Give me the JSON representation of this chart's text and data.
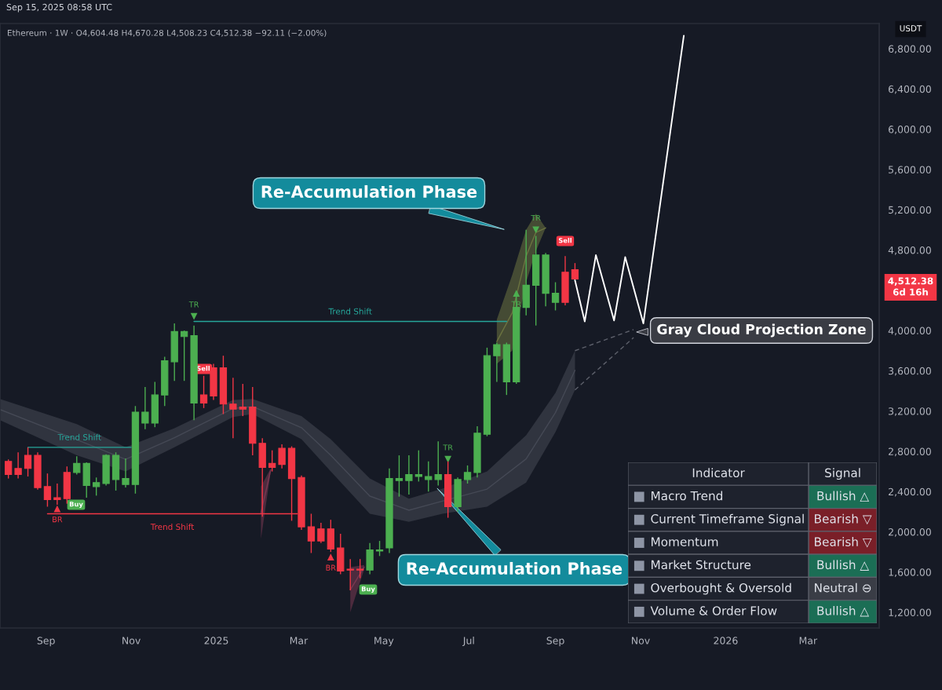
{
  "chart_data": [
    {
      "type": "candlestick",
      "title": "Ethereum · 1W · O4,604.48 H4,670.28 L4,508.23 C4,512.38 −92.11 (−2.00%)",
      "ylabel": "USDT",
      "x": [
        "2024-08-05",
        "2024-08-12",
        "2024-08-19",
        "2024-08-26",
        "2024-09-02",
        "2024-09-09",
        "2024-09-16",
        "2024-09-23",
        "2024-09-30",
        "2024-10-07",
        "2024-10-14",
        "2024-10-21",
        "2024-10-28",
        "2024-11-04",
        "2024-11-11",
        "2024-11-18",
        "2024-11-25",
        "2024-12-02",
        "2024-12-09",
        "2024-12-16",
        "2024-12-23",
        "2024-12-30",
        "2025-01-06",
        "2025-01-13",
        "2025-01-20",
        "2025-01-27",
        "2025-02-03",
        "2025-02-10",
        "2025-02-17",
        "2025-02-24",
        "2025-03-03",
        "2025-03-10",
        "2025-03-17",
        "2025-03-24",
        "2025-03-31",
        "2025-04-07",
        "2025-04-14",
        "2025-04-21",
        "2025-04-28",
        "2025-05-05",
        "2025-05-12",
        "2025-05-19",
        "2025-05-26",
        "2025-06-02",
        "2025-06-09",
        "2025-06-16",
        "2025-06-23",
        "2025-06-30",
        "2025-07-07",
        "2025-07-14",
        "2025-07-21",
        "2025-07-28",
        "2025-08-04",
        "2025-08-11",
        "2025-08-18",
        "2025-08-25",
        "2025-09-01",
        "2025-09-08",
        "2025-09-15"
      ],
      "ohlc": [
        [
          2700,
          2720,
          2530,
          2570
        ],
        [
          2630,
          2790,
          2530,
          2570
        ],
        [
          2760,
          2840,
          2550,
          2630
        ],
        [
          2760,
          2790,
          2420,
          2440
        ],
        [
          2450,
          2580,
          2250,
          2320
        ],
        [
          2340,
          2480,
          2270,
          2320
        ],
        [
          2590,
          2650,
          2280,
          2330
        ],
        [
          2590,
          2750,
          2570,
          2680
        ],
        [
          2460,
          2690,
          2340,
          2680
        ],
        [
          2450,
          2540,
          2360,
          2490
        ],
        [
          2480,
          2770,
          2460,
          2760
        ],
        [
          2520,
          2790,
          2410,
          2760
        ],
        [
          2470,
          2730,
          2440,
          2530
        ],
        [
          2470,
          3250,
          2380,
          3190
        ],
        [
          3080,
          3440,
          3020,
          3190
        ],
        [
          3080,
          3490,
          3040,
          3360
        ],
        [
          3360,
          3740,
          3250,
          3700
        ],
        [
          3690,
          4070,
          3500,
          3990
        ],
        [
          3940,
          4000,
          3500,
          3990
        ],
        [
          3280,
          4050,
          3110,
          3950
        ],
        [
          3360,
          3550,
          3230,
          3280
        ],
        [
          3630,
          3670,
          3310,
          3350
        ],
        [
          3630,
          3750,
          3170,
          3270
        ],
        [
          3270,
          3530,
          2930,
          3220
        ],
        [
          3240,
          3470,
          3150,
          3220
        ],
        [
          3240,
          3440,
          2760,
          2880
        ],
        [
          2880,
          2930,
          2150,
          2640
        ],
        [
          2680,
          2810,
          2600,
          2640
        ],
        [
          2830,
          2870,
          2630,
          2670
        ],
        [
          2830,
          2850,
          2110,
          2530
        ],
        [
          2540,
          2560,
          2020,
          2050
        ],
        [
          2050,
          2180,
          1790,
          1910
        ],
        [
          2030,
          2090,
          1890,
          1910
        ],
        [
          2030,
          2120,
          1800,
          1830
        ],
        [
          1840,
          1980,
          1580,
          1610
        ],
        [
          1630,
          1730,
          1420,
          1620
        ],
        [
          1630,
          1730,
          1540,
          1620
        ],
        [
          1620,
          1890,
          1580,
          1820
        ],
        [
          1810,
          1910,
          1760,
          1820
        ],
        [
          1840,
          2630,
          1790,
          2530
        ],
        [
          2510,
          2760,
          2350,
          2530
        ],
        [
          2510,
          2760,
          2370,
          2570
        ],
        [
          2550,
          2810,
          2500,
          2570
        ],
        [
          2520,
          2700,
          2400,
          2550
        ],
        [
          2520,
          2900,
          2460,
          2570
        ],
        [
          2570,
          2700,
          2140,
          2250
        ],
        [
          2250,
          2540,
          2200,
          2520
        ],
        [
          2520,
          2660,
          2480,
          2590
        ],
        [
          2590,
          3050,
          2540,
          2980
        ],
        [
          2970,
          3830,
          2950,
          3750
        ],
        [
          3750,
          3880,
          3490,
          3860
        ],
        [
          3490,
          3880,
          3360,
          3860
        ],
        [
          3490,
          4390,
          3470,
          4230
        ],
        [
          4230,
          5000,
          4150,
          4450
        ],
        [
          4450,
          4940,
          4050,
          4750
        ],
        [
          4370,
          4770,
          4240,
          4750
        ],
        [
          4280,
          4480,
          4200,
          4370
        ],
        [
          4580,
          4740,
          4250,
          4280
        ],
        [
          4604.48,
          4670.28,
          4508.23,
          4512.38
        ]
      ],
      "series": [
        {
          "type": "line",
          "color": "#454955",
          "x": [
            "2024-07-30",
            "2024-09-23",
            "2024-10-28",
            "2024-12-02",
            "2025-01-13",
            "2025-01-27",
            "2025-03-03",
            "2025-03-24",
            "2025-04-21",
            "2025-05-19",
            "2025-06-12",
            "2025-07-14",
            "2025-08-11",
            "2025-09-01",
            "2025-09-15"
          ],
          "values": [
            3215,
            2915,
            2720,
            2935,
            3225,
            3245,
            3035,
            2760,
            2355,
            2215,
            2305,
            2425,
            2725,
            3185,
            3605
          ],
          "upper": [
            3320,
            3070,
            2840,
            3030,
            3310,
            3320,
            3150,
            2920,
            2530,
            2330,
            2430,
            2600,
            2960,
            3380,
            3800
          ],
          "lower": [
            3110,
            2760,
            2600,
            2840,
            3140,
            3170,
            2920,
            2600,
            2180,
            2100,
            2180,
            2250,
            2490,
            2990,
            3410
          ]
        },
        {
          "type": "line",
          "color": "#6b7340",
          "x": [
            "2025-07-21",
            "2025-08-01",
            "2025-08-11",
            "2025-08-18",
            "2025-08-25"
          ],
          "values": [
            3890,
            4175,
            4740,
            4975,
            5020
          ],
          "upper": [
            4110,
            4550,
            5000,
            5160,
            5020
          ],
          "lower": [
            3670,
            3800,
            4480,
            4790,
            5020
          ]
        },
        {
          "type": "line",
          "color": "#7a3852",
          "x": [
            "2025-02-02",
            "2025-02-09"
          ],
          "values": [
            2190,
            2615
          ],
          "upper": [
            2450,
            2630
          ],
          "lower": [
            1930,
            2600
          ]
        },
        {
          "type": "line",
          "color": "#7a3852",
          "x": [
            "2025-04-07",
            "2025-04-17"
          ],
          "values": [
            1425,
            1650
          ],
          "upper": [
            1650,
            1670
          ],
          "lower": [
            1200,
            1630
          ]
        },
        {
          "type": "line",
          "name": "Trend Shift",
          "color": "#26a69a",
          "x": [
            "2024-08-19",
            "2024-11-01"
          ],
          "values": [
            2840,
            2840
          ]
        },
        {
          "type": "line",
          "name": "Trend Shift",
          "color": "#26a69a",
          "x": [
            "2024-12-16",
            "2025-07-28"
          ],
          "values": [
            4090,
            4090
          ]
        },
        {
          "type": "line",
          "name": "Trend Shift",
          "color": "#f23645",
          "x": [
            "2024-09-02",
            "2025-02-28"
          ],
          "values": [
            2180,
            2180
          ]
        },
        {
          "type": "line",
          "color": "#5d606b",
          "line_style": "dashed",
          "x": [
            "2025-09-15",
            "2025-10-27"
          ],
          "values": [
            3800,
            4010
          ]
        },
        {
          "type": "line",
          "color": "#5d606b",
          "line_style": "dashed",
          "x": [
            "2025-09-15",
            "2025-10-27"
          ],
          "values": [
            3410,
            3930
          ]
        },
        {
          "type": "line",
          "color": "#ffffff",
          "x": [
            "2025-09-15",
            "2025-09-22",
            "2025-09-30",
            "2025-10-13",
            "2025-10-21",
            "2025-11-03",
            "2025-12-02"
          ],
          "values": [
            4500,
            4090,
            4750,
            4100,
            4730,
            4070,
            6930
          ]
        },
        {
          "type": "scatter",
          "name": "TR",
          "marker": "triangle",
          "color": "#4caf50",
          "x": [
            "2024-12-16",
            "2025-06-16",
            "2025-08-04",
            "2025-08-18"
          ],
          "values": [
            4140,
            2720,
            4370,
            5000
          ]
        },
        {
          "type": "scatter",
          "name": "BR",
          "marker": "triangle",
          "color": "#f23645",
          "x": [
            "2024-09-09",
            "2025-03-24"
          ],
          "values": [
            2230,
            1750
          ]
        }
      ],
      "xlim": [
        "2024-07-30",
        "2026-04-21"
      ],
      "xticks": [
        {
          "value": "2024-09-01",
          "label": "Sep"
        },
        {
          "value": "2024-11-01",
          "label": "Nov"
        },
        {
          "value": "2025-01-01",
          "label": "2025"
        },
        {
          "value": "2025-03-01",
          "label": "Mar"
        },
        {
          "value": "2025-05-01",
          "label": "May"
        },
        {
          "value": "2025-07-01",
          "label": "Jul"
        },
        {
          "value": "2025-09-01",
          "label": "Sep"
        },
        {
          "value": "2025-11-01",
          "label": "Nov"
        },
        {
          "value": "2026-01-01",
          "label": "2026"
        },
        {
          "value": "2026-03-01",
          "label": "Mar"
        }
      ],
      "ylim": [
        1045,
        7050
      ],
      "yticks": [
        {
          "value": 1200,
          "label": "1,200.00"
        },
        {
          "value": 1600,
          "label": "1,600.00"
        },
        {
          "value": 2000,
          "label": "2,000.00"
        },
        {
          "value": 2400,
          "label": "2,400.00"
        },
        {
          "value": 2800,
          "label": "2,800.00"
        },
        {
          "value": 3200,
          "label": "3,200.00"
        },
        {
          "value": 3600,
          "label": "3,600.00"
        },
        {
          "value": 4000,
          "label": "4,000.00"
        },
        {
          "value": 4800,
          "label": "4,800.00"
        },
        {
          "value": 5200,
          "label": "5,200.00"
        },
        {
          "value": 5600,
          "label": "5,600.00"
        },
        {
          "value": 6000,
          "label": "6,000.00"
        },
        {
          "value": 6400,
          "label": "6,400.00"
        },
        {
          "value": 6800,
          "label": "6,800.00"
        }
      ],
      "annotations": [
        "Sep 15, 2025 08:58 UTC",
        "Re-Accumulation Phase",
        "Re-Accumulation Phase",
        "Gray Cloud Projection Zone",
        "4,512.38\n6d 16h",
        "Buy",
        "Buy",
        "Sell",
        "Sell"
      ]
    },
    {
      "type": "other",
      "annotations": [
        "Indicator",
        "Signal",
        "Macro Trend",
        "Bullish △",
        "Current Timeframe Signal",
        "Bearish ▽",
        "Momentum",
        "Bearish ▽",
        "Market Structure",
        "Bullish △",
        "Overbought & Oversold",
        "Neutral ⊖",
        "Volume & Order Flow",
        "Bullish △"
      ],
      "colors": [
        "#1b6e55",
        "#7a1f28",
        "#7a1f28",
        "#1b6e55",
        "#3a3d46",
        "#1b6e55"
      ]
    }
  ]
}
